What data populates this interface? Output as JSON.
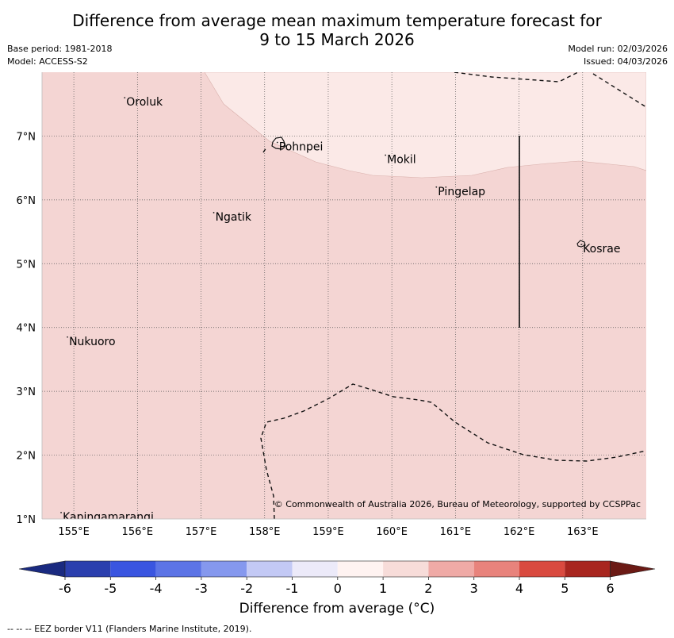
{
  "title": {
    "line1": "Difference from average mean maximum temperature forecast for",
    "line2": "9 to 15 March 2026"
  },
  "meta": {
    "base_period": "Base period: 1981-2018",
    "model": "Model: ACCESS-S2",
    "model_run": "Model run: 02/03/2026",
    "issued": "Issued: 04/03/2026"
  },
  "map": {
    "lon_range": [
      154.5,
      164.0
    ],
    "lat_range": [
      1.0,
      8.0
    ],
    "lon_ticks": [
      "155°E",
      "156°E",
      "157°E",
      "158°E",
      "159°E",
      "160°E",
      "161°E",
      "162°E",
      "163°E"
    ],
    "lat_ticks": [
      "7°N",
      "6°N",
      "5°N",
      "4°N",
      "3°N",
      "2°N",
      "1°N"
    ],
    "places": [
      {
        "name": "Oroluk",
        "lon": 155.8,
        "lat": 7.6
      },
      {
        "name": "Pohnpei",
        "lon": 158.2,
        "lat": 6.9
      },
      {
        "name": "Mokil",
        "lon": 159.9,
        "lat": 6.7
      },
      {
        "name": "Pingelap",
        "lon": 160.7,
        "lat": 6.2
      },
      {
        "name": "Ngatik",
        "lon": 157.2,
        "lat": 5.8
      },
      {
        "name": "Kosrae",
        "lon": 162.98,
        "lat": 5.3
      },
      {
        "name": "Nukuoro",
        "lon": 154.9,
        "lat": 3.85
      },
      {
        "name": "Kapingamarangi",
        "lon": 154.8,
        "lat": 1.1
      }
    ],
    "fill_colors": {
      "band_0_1": "#fbe9e7",
      "band_1_2": "#f4d5d3"
    },
    "copyright": "© Commonwealth of Australia 2026, Bureau of Meteorology, supported by CCSPPac"
  },
  "colorbar": {
    "ticks": [
      "-6",
      "-5",
      "-4",
      "-3",
      "-2",
      "-1",
      "0",
      "1",
      "2",
      "3",
      "4",
      "5",
      "6"
    ],
    "colors": [
      "#2b3fae",
      "#3a55e0",
      "#5c74e6",
      "#8598ee",
      "#c3c9f5",
      "#eceaf9",
      "#fff3f1",
      "#f7dcd9",
      "#efaaa6",
      "#e8837c",
      "#d94a3f",
      "#a8261f"
    ],
    "under_color": "#1a2a80",
    "over_color": "#6b1a15",
    "label": "Difference from average (°C)"
  },
  "footer": "-- -- -- EEZ border V11 (Flanders Marine Institute, 2019)."
}
